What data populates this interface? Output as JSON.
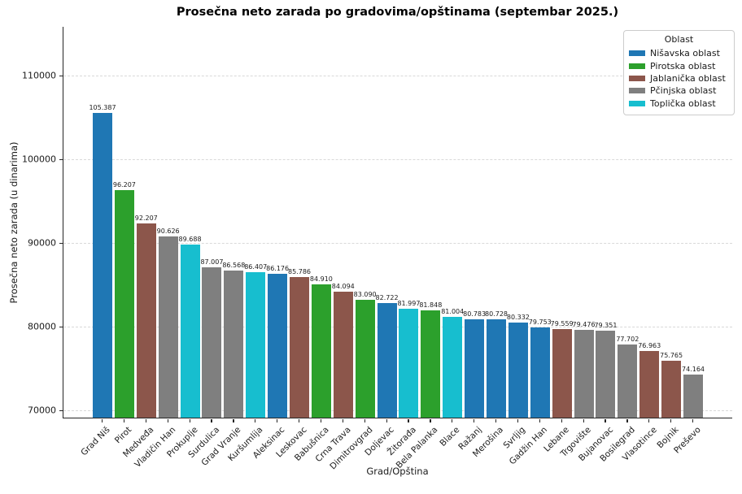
{
  "chart_data": {
    "type": "bar",
    "title": "Prosečna neto zarada po gradovima/opštinama (septembar 2025.)",
    "xlabel": "Grad/Opština",
    "ylabel": "Prosečna neto zarada (u dinarima)",
    "ylim": [
      69000,
      115800
    ],
    "yticks": [
      70000,
      80000,
      90000,
      100000,
      110000
    ],
    "grid": "horizontal-dashed",
    "legend": {
      "title": "Oblast",
      "position": "upper right",
      "entries": [
        {
          "label": "Nišavska oblast",
          "color": "#1f77b4"
        },
        {
          "label": "Pirotska oblast",
          "color": "#2ca02c"
        },
        {
          "label": "Jablanička oblast",
          "color": "#8c564b"
        },
        {
          "label": "Pčinjska oblast",
          "color": "#7f7f7f"
        },
        {
          "label": "Toplička oblast",
          "color": "#17becf"
        }
      ]
    },
    "bars": [
      {
        "label": "Grad Niš",
        "value": 105387,
        "value_label": "105.387",
        "oblast": "Nišavska oblast"
      },
      {
        "label": "Pirot",
        "value": 96207,
        "value_label": "96.207",
        "oblast": "Pirotska oblast"
      },
      {
        "label": "Medveđa",
        "value": 92207,
        "value_label": "92.207",
        "oblast": "Jablanička oblast"
      },
      {
        "label": "Vladičin Han",
        "value": 90626,
        "value_label": "90.626",
        "oblast": "Pčinjska oblast"
      },
      {
        "label": "Prokuplje",
        "value": 89688,
        "value_label": "89.688",
        "oblast": "Toplička oblast"
      },
      {
        "label": "Surdulica",
        "value": 87007,
        "value_label": "87.007",
        "oblast": "Pčinjska oblast"
      },
      {
        "label": "Grad Vranje",
        "value": 86568,
        "value_label": "86.568",
        "oblast": "Pčinjska oblast"
      },
      {
        "label": "Kuršumlija",
        "value": 86407,
        "value_label": "86.407",
        "oblast": "Toplička oblast"
      },
      {
        "label": "Aleksinac",
        "value": 86176,
        "value_label": "86.176",
        "oblast": "Nišavska oblast"
      },
      {
        "label": "Leskovac",
        "value": 85786,
        "value_label": "85.786",
        "oblast": "Jablanička oblast"
      },
      {
        "label": "Babušnica",
        "value": 84910,
        "value_label": "84.910",
        "oblast": "Pirotska oblast"
      },
      {
        "label": "Crna Trava",
        "value": 84094,
        "value_label": "84.094",
        "oblast": "Jablanička oblast"
      },
      {
        "label": "Dimitrovgrad",
        "value": 83090,
        "value_label": "83.090",
        "oblast": "Pirotska oblast"
      },
      {
        "label": "Doljevac",
        "value": 82722,
        "value_label": "82.722",
        "oblast": "Nišavska oblast"
      },
      {
        "label": "Žitorađa",
        "value": 81997,
        "value_label": "81.997",
        "oblast": "Toplička oblast"
      },
      {
        "label": "Bela Palanka",
        "value": 81848,
        "value_label": "81.848",
        "oblast": "Pirotska oblast"
      },
      {
        "label": "Blace",
        "value": 81004,
        "value_label": "81.004",
        "oblast": "Toplička oblast"
      },
      {
        "label": "Ražanj",
        "value": 80783,
        "value_label": "80.783",
        "oblast": "Nišavska oblast"
      },
      {
        "label": "Merošina",
        "value": 80728,
        "value_label": "80.728",
        "oblast": "Nišavska oblast"
      },
      {
        "label": "Svrljig",
        "value": 80332,
        "value_label": "80.332",
        "oblast": "Nišavska oblast"
      },
      {
        "label": "Gadžin Han",
        "value": 79753,
        "value_label": "79.753",
        "oblast": "Nišavska oblast"
      },
      {
        "label": "Lebane",
        "value": 79559,
        "value_label": "79.559",
        "oblast": "Jablanička oblast"
      },
      {
        "label": "Trgovište",
        "value": 79476,
        "value_label": "79.476",
        "oblast": "Pčinjska oblast"
      },
      {
        "label": "Bujanovac",
        "value": 79351,
        "value_label": "79.351",
        "oblast": "Pčinjska oblast"
      },
      {
        "label": "Bosilegrad",
        "value": 77702,
        "value_label": "77.702",
        "oblast": "Pčinjska oblast"
      },
      {
        "label": "Vlasotince",
        "value": 76963,
        "value_label": "76.963",
        "oblast": "Jablanička oblast"
      },
      {
        "label": "Bojnik",
        "value": 75765,
        "value_label": "75.765",
        "oblast": "Jablanička oblast"
      },
      {
        "label": "Preševo",
        "value": 74164,
        "value_label": "74.164",
        "oblast": "Pčinjska oblast"
      }
    ]
  }
}
